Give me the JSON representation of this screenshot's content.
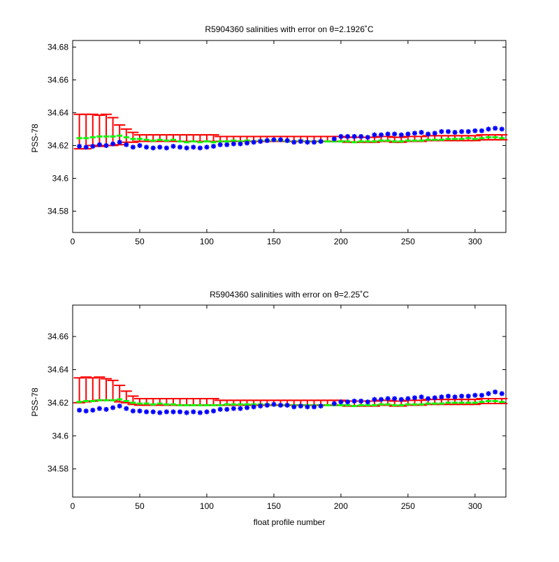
{
  "chart_data": [
    {
      "type": "scatter",
      "title": "R5904360 salinities with error on θ=2.1926˚C",
      "xlabel": "",
      "ylabel": "PSS-78",
      "xlim": [
        0,
        323
      ],
      "ylim": [
        34.567,
        34.684
      ],
      "xticks": [
        0,
        50,
        100,
        150,
        200,
        250,
        300
      ],
      "yticks": [
        34.58,
        34.6,
        34.62,
        34.64,
        34.66,
        34.68
      ],
      "ytick_labels": [
        "34.58",
        "34.6",
        "34.62",
        "34.64",
        "34.66",
        "34.68"
      ],
      "grid": false,
      "colors": {
        "float": "#0000ff",
        "calibrated": "#00ff00",
        "error": "#ff0000"
      },
      "series": [
        {
          "role": "float",
          "x": [
            5,
            10,
            15,
            20,
            25,
            30,
            35,
            40,
            45,
            50,
            55,
            60,
            65,
            70,
            75,
            80,
            85,
            90,
            95,
            100,
            105,
            110,
            115,
            120,
            125,
            130,
            135,
            140,
            145,
            150,
            155,
            160,
            165,
            170,
            175,
            180,
            185,
            195,
            200,
            205,
            210,
            215,
            220,
            225,
            230,
            235,
            240,
            245,
            250,
            255,
            260,
            265,
            270,
            275,
            280,
            285,
            290,
            295,
            300,
            305,
            310,
            315,
            320
          ],
          "y": [
            34.6195,
            34.619,
            34.6195,
            34.6205,
            34.62,
            34.621,
            34.622,
            34.6205,
            34.619,
            34.62,
            34.619,
            34.6185,
            34.619,
            34.6185,
            34.6195,
            34.619,
            34.6185,
            34.619,
            34.6185,
            34.619,
            34.6195,
            34.6205,
            34.6205,
            34.621,
            34.621,
            34.6215,
            34.622,
            34.6225,
            34.623,
            34.6235,
            34.6235,
            34.623,
            34.622,
            34.6225,
            34.622,
            34.622,
            34.6225,
            34.624,
            34.6255,
            34.6255,
            34.6255,
            34.6255,
            34.625,
            34.6265,
            34.6265,
            34.627,
            34.627,
            34.6265,
            34.627,
            34.6275,
            34.628,
            34.627,
            34.6275,
            34.6285,
            34.6285,
            34.628,
            34.6285,
            34.6285,
            34.629,
            34.629,
            34.63,
            34.6305,
            34.63
          ]
        },
        {
          "role": "calibrated",
          "x": [
            5,
            10,
            15,
            20,
            25,
            30,
            35,
            40,
            45,
            50,
            55,
            60,
            65,
            70,
            75,
            80,
            85,
            90,
            95,
            100,
            105,
            110,
            115,
            120,
            125,
            130,
            135,
            140,
            145,
            150,
            155,
            160,
            165,
            170,
            175,
            180,
            185,
            190,
            195,
            200,
            205,
            210,
            215,
            220,
            225,
            230,
            235,
            240,
            245,
            250,
            255,
            260,
            265,
            270,
            275,
            280,
            285,
            290,
            295,
            300,
            305,
            310,
            315,
            320
          ],
          "y": [
            34.6245,
            34.6245,
            34.625,
            34.6255,
            34.6255,
            34.6255,
            34.626,
            34.625,
            34.624,
            34.624,
            34.6235,
            34.623,
            34.6235,
            34.623,
            34.6235,
            34.6225,
            34.622,
            34.6225,
            34.622,
            34.6225,
            34.622,
            34.6225,
            34.6225,
            34.623,
            34.6225,
            34.623,
            34.6225,
            34.623,
            34.623,
            34.623,
            34.623,
            34.6225,
            34.6225,
            34.623,
            34.6225,
            34.6225,
            34.6225,
            34.6225,
            34.6225,
            34.6225,
            34.6225,
            34.622,
            34.6225,
            34.6225,
            34.6225,
            34.623,
            34.623,
            34.6225,
            34.6225,
            34.623,
            34.623,
            34.623,
            34.6235,
            34.6235,
            34.6235,
            34.624,
            34.624,
            34.624,
            34.6245,
            34.624,
            34.6245,
            34.625,
            34.625,
            34.6245
          ]
        },
        {
          "role": "error",
          "x": [
            5,
            10,
            15,
            20,
            25,
            30,
            35,
            40,
            45,
            50,
            55,
            60,
            65,
            70,
            75,
            80,
            85,
            90,
            95,
            100,
            105,
            110,
            115,
            120,
            125,
            130,
            135,
            140,
            145,
            150,
            155,
            160,
            165,
            170,
            175,
            180,
            185,
            190,
            195,
            200,
            205,
            210,
            215,
            220,
            225,
            230,
            235,
            240,
            245,
            250,
            255,
            260,
            265,
            270,
            275,
            280,
            285,
            290,
            295,
            300,
            305,
            310,
            315,
            320
          ],
          "y": [
            34.6285,
            34.6285,
            34.6295,
            34.629,
            34.6295,
            34.6285,
            34.6265,
            34.626,
            34.625,
            34.6245,
            34.6245,
            34.6245,
            34.6245,
            34.6245,
            34.6245,
            34.6245,
            34.6245,
            34.6245,
            34.6245,
            34.6245,
            34.6245,
            34.624,
            34.624,
            34.624,
            34.624,
            34.624,
            34.624,
            34.624,
            34.624,
            34.624,
            34.624,
            34.624,
            34.624,
            34.624,
            34.624,
            34.624,
            34.624,
            34.624,
            34.624,
            34.624,
            34.6235,
            34.6235,
            34.6235,
            34.6235,
            34.6235,
            34.624,
            34.624,
            34.6235,
            34.6235,
            34.624,
            34.624,
            34.624,
            34.6245,
            34.6245,
            34.6245,
            34.6245,
            34.6245,
            34.6245,
            34.6245,
            34.6245,
            34.625,
            34.625,
            34.625,
            34.625
          ],
          "err": [
            0.0105,
            0.0105,
            0.0095,
            0.0095,
            0.0095,
            0.0085,
            0.006,
            0.004,
            0.003,
            0.002,
            0.002,
            0.002,
            0.002,
            0.002,
            0.002,
            0.002,
            0.002,
            0.002,
            0.002,
            0.002,
            0.002,
            0.0015,
            0.0015,
            0.0015,
            0.0015,
            0.0015,
            0.0015,
            0.0015,
            0.0015,
            0.0015,
            0.0015,
            0.0015,
            0.0015,
            0.0015,
            0.0015,
            0.0015,
            0.0015,
            0.0015,
            0.0015,
            0.0015,
            0.0015,
            0.0015,
            0.0015,
            0.0015,
            0.0015,
            0.0015,
            0.0015,
            0.0015,
            0.0015,
            0.0015,
            0.0015,
            0.0015,
            0.0015,
            0.0015,
            0.0015,
            0.0015,
            0.0015,
            0.0015,
            0.0015,
            0.0015,
            0.0015,
            0.0015,
            0.0015,
            0.0015
          ]
        }
      ]
    },
    {
      "type": "scatter",
      "title": "R5904360 salinities with error on θ=2.25˚C",
      "xlabel": "float profile number",
      "ylabel": "PSS-78",
      "xlim": [
        0,
        323
      ],
      "ylim": [
        34.563,
        34.679
      ],
      "xticks": [
        0,
        50,
        100,
        150,
        200,
        250,
        300
      ],
      "yticks": [
        34.58,
        34.6,
        34.62,
        34.64,
        34.66
      ],
      "ytick_labels": [
        "34.58",
        "34.6",
        "34.62",
        "34.64",
        "34.66"
      ],
      "grid": false,
      "colors": {
        "float": "#0000ff",
        "calibrated": "#00ff00",
        "error": "#ff0000"
      },
      "series": [
        {
          "role": "float",
          "x": [
            5,
            10,
            15,
            20,
            25,
            30,
            35,
            40,
            45,
            50,
            55,
            60,
            65,
            70,
            75,
            80,
            85,
            90,
            95,
            100,
            105,
            110,
            115,
            120,
            125,
            130,
            135,
            140,
            145,
            150,
            155,
            160,
            165,
            170,
            175,
            180,
            185,
            195,
            200,
            205,
            210,
            215,
            220,
            225,
            230,
            235,
            240,
            245,
            250,
            255,
            260,
            265,
            270,
            275,
            280,
            285,
            290,
            295,
            300,
            305,
            310,
            315,
            320
          ],
          "y": [
            34.6155,
            34.615,
            34.6155,
            34.6165,
            34.616,
            34.617,
            34.618,
            34.6165,
            34.615,
            34.615,
            34.6145,
            34.6145,
            34.614,
            34.6145,
            34.6145,
            34.6145,
            34.614,
            34.6145,
            34.614,
            34.6145,
            34.615,
            34.616,
            34.616,
            34.6165,
            34.6165,
            34.617,
            34.6175,
            34.618,
            34.6185,
            34.619,
            34.6185,
            34.6185,
            34.6175,
            34.618,
            34.6175,
            34.6175,
            34.618,
            34.6195,
            34.6205,
            34.6205,
            34.621,
            34.621,
            34.6205,
            34.622,
            34.622,
            34.6225,
            34.6225,
            34.622,
            34.6225,
            34.623,
            34.6235,
            34.6225,
            34.623,
            34.6235,
            34.624,
            34.6235,
            34.624,
            34.624,
            34.6245,
            34.6245,
            34.6255,
            34.6265,
            34.6255
          ]
        },
        {
          "role": "calibrated",
          "x": [
            5,
            10,
            15,
            20,
            25,
            30,
            35,
            40,
            45,
            50,
            55,
            60,
            65,
            70,
            75,
            80,
            85,
            90,
            95,
            100,
            105,
            110,
            115,
            120,
            125,
            130,
            135,
            140,
            145,
            150,
            155,
            160,
            165,
            170,
            175,
            180,
            185,
            190,
            195,
            200,
            205,
            210,
            215,
            220,
            225,
            230,
            235,
            240,
            245,
            250,
            255,
            260,
            265,
            270,
            275,
            280,
            285,
            290,
            295,
            300,
            305,
            310,
            315,
            320
          ],
          "y": [
            34.6205,
            34.621,
            34.621,
            34.6215,
            34.6215,
            34.6215,
            34.622,
            34.621,
            34.62,
            34.6195,
            34.6195,
            34.619,
            34.6195,
            34.619,
            34.619,
            34.6185,
            34.6185,
            34.6185,
            34.6185,
            34.6185,
            34.6185,
            34.6185,
            34.619,
            34.619,
            34.619,
            34.619,
            34.619,
            34.619,
            34.619,
            34.6185,
            34.6185,
            34.6185,
            34.6185,
            34.6185,
            34.6185,
            34.6185,
            34.6185,
            34.6185,
            34.6185,
            34.6185,
            34.6185,
            34.618,
            34.6185,
            34.6185,
            34.6185,
            34.619,
            34.619,
            34.6185,
            34.6185,
            34.619,
            34.619,
            34.619,
            34.6195,
            34.6195,
            34.6195,
            34.62,
            34.62,
            34.62,
            34.62,
            34.62,
            34.6205,
            34.621,
            34.621,
            34.6205
          ]
        },
        {
          "role": "error",
          "x": [
            5,
            10,
            15,
            20,
            25,
            30,
            35,
            40,
            45,
            50,
            55,
            60,
            65,
            70,
            75,
            80,
            85,
            90,
            95,
            100,
            105,
            110,
            115,
            120,
            125,
            130,
            135,
            140,
            145,
            150,
            155,
            160,
            165,
            170,
            175,
            180,
            185,
            190,
            195,
            200,
            205,
            210,
            215,
            220,
            225,
            230,
            235,
            240,
            245,
            250,
            255,
            260,
            265,
            270,
            275,
            280,
            285,
            290,
            295,
            300,
            305,
            310,
            315,
            320
          ],
          "y": [
            34.6275,
            34.628,
            34.628,
            34.6285,
            34.628,
            34.6275,
            34.6255,
            34.6235,
            34.6215,
            34.6205,
            34.6205,
            34.6205,
            34.6205,
            34.6205,
            34.6205,
            34.6205,
            34.6205,
            34.6205,
            34.6205,
            34.6205,
            34.6205,
            34.62,
            34.62,
            34.62,
            34.62,
            34.62,
            34.62,
            34.62,
            34.62,
            34.62,
            34.62,
            34.62,
            34.62,
            34.62,
            34.62,
            34.62,
            34.62,
            34.62,
            34.62,
            34.62,
            34.6195,
            34.6195,
            34.6195,
            34.6195,
            34.6195,
            34.62,
            34.62,
            34.6195,
            34.6195,
            34.62,
            34.62,
            34.62,
            34.6205,
            34.6205,
            34.6205,
            34.6205,
            34.6205,
            34.6205,
            34.6205,
            34.6205,
            34.621,
            34.621,
            34.621,
            34.621
          ],
          "err": [
            0.0075,
            0.0075,
            0.007,
            0.007,
            0.0065,
            0.006,
            0.005,
            0.0035,
            0.0025,
            0.002,
            0.002,
            0.002,
            0.002,
            0.002,
            0.002,
            0.002,
            0.002,
            0.002,
            0.002,
            0.002,
            0.002,
            0.0015,
            0.0015,
            0.0015,
            0.0015,
            0.0015,
            0.0015,
            0.0015,
            0.0015,
            0.0015,
            0.0015,
            0.0015,
            0.0015,
            0.0015,
            0.0015,
            0.0015,
            0.0015,
            0.0015,
            0.0015,
            0.0015,
            0.0015,
            0.0015,
            0.0015,
            0.0015,
            0.0015,
            0.0015,
            0.0015,
            0.0015,
            0.0015,
            0.0015,
            0.0015,
            0.0015,
            0.0015,
            0.0015,
            0.0015,
            0.0015,
            0.0015,
            0.0015,
            0.0015,
            0.0015,
            0.0015,
            0.0015,
            0.0015,
            0.0015
          ]
        }
      ]
    }
  ]
}
